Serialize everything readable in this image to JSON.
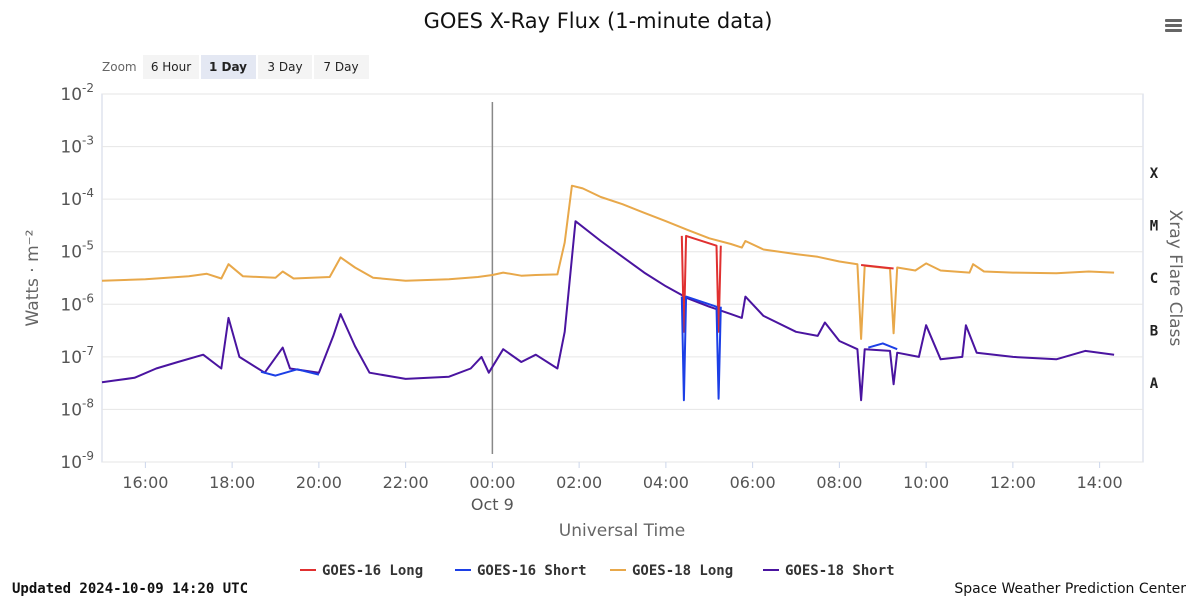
{
  "menu_icon": "hamburger-menu-icon",
  "zoom": {
    "label": "Zoom",
    "buttons": [
      "6 Hour",
      "1 Day",
      "3 Day",
      "7 Day"
    ],
    "selected": "1 Day"
  },
  "footer": {
    "updated": "Updated 2024-10-09 14:20 UTC",
    "source": "Space Weather Prediction Center"
  },
  "colors": {
    "goes16_long": "#e03030",
    "goes16_short": "#1c3fe6",
    "goes18_long": "#e8a84a",
    "goes18_short": "#4a14a0"
  },
  "chart_data": {
    "type": "line",
    "title": "GOES X-Ray Flux (1-minute data)",
    "xlabel": "Universal Time",
    "ylabel": "Watts · m⁻²",
    "y2label": "Xray Flare Class",
    "y_scale": "log",
    "ylim": [
      1e-09,
      0.01
    ],
    "y_ticks": [
      {
        "base": "10",
        "exp": "-9",
        "value": 1e-09
      },
      {
        "base": "10",
        "exp": "-8",
        "value": 1e-08
      },
      {
        "base": "10",
        "exp": "-7",
        "value": 1e-07
      },
      {
        "base": "10",
        "exp": "-6",
        "value": 1e-06
      },
      {
        "base": "10",
        "exp": "-5",
        "value": 1e-05
      },
      {
        "base": "10",
        "exp": "-4",
        "value": 0.0001
      },
      {
        "base": "10",
        "exp": "-3",
        "value": 0.001
      },
      {
        "base": "10",
        "exp": "-2",
        "value": 0.01
      }
    ],
    "xlim": [
      "2024-10-08 15:00",
      "2024-10-09 15:00"
    ],
    "x_ticks": [
      {
        "label": "16:00",
        "time": "2024-10-08 16:00"
      },
      {
        "label": "18:00",
        "time": "2024-10-08 18:00"
      },
      {
        "label": "20:00",
        "time": "2024-10-08 20:00"
      },
      {
        "label": "22:00",
        "time": "2024-10-08 22:00"
      },
      {
        "label": "00:00",
        "sub": "Oct 9",
        "time": "2024-10-09 00:00"
      },
      {
        "label": "02:00",
        "time": "2024-10-09 02:00"
      },
      {
        "label": "04:00",
        "time": "2024-10-09 04:00"
      },
      {
        "label": "06:00",
        "time": "2024-10-09 06:00"
      },
      {
        "label": "08:00",
        "time": "2024-10-09 08:00"
      },
      {
        "label": "10:00",
        "time": "2024-10-09 10:00"
      },
      {
        "label": "12:00",
        "time": "2024-10-09 12:00"
      },
      {
        "label": "14:00",
        "time": "2024-10-09 14:00"
      }
    ],
    "day_marker": "2024-10-09 00:00",
    "flare_classes": [
      {
        "label": "A",
        "value": 1e-08
      },
      {
        "label": "B",
        "value": 1e-07
      },
      {
        "label": "C",
        "value": 1e-06
      },
      {
        "label": "M",
        "value": 1e-05
      },
      {
        "label": "X",
        "value": 0.0001
      }
    ],
    "grid": true,
    "legend_position": "bottom-center",
    "series": [
      {
        "name": "GOES-18 Long",
        "color": "#e8a84a",
        "points": [
          [
            "2024-10-08 15:00",
            2.8e-06
          ],
          [
            "2024-10-08 16:00",
            3e-06
          ],
          [
            "2024-10-08 17:00",
            3.4e-06
          ],
          [
            "2024-10-08 17:25",
            3.8e-06
          ],
          [
            "2024-10-08 17:45",
            3.1e-06
          ],
          [
            "2024-10-08 17:55",
            5.8e-06
          ],
          [
            "2024-10-08 18:15",
            3.4e-06
          ],
          [
            "2024-10-08 19:00",
            3.2e-06
          ],
          [
            "2024-10-08 19:10",
            4.2e-06
          ],
          [
            "2024-10-08 19:25",
            3.1e-06
          ],
          [
            "2024-10-08 20:15",
            3.3e-06
          ],
          [
            "2024-10-08 20:30",
            7.8e-06
          ],
          [
            "2024-10-08 20:50",
            5e-06
          ],
          [
            "2024-10-08 21:15",
            3.2e-06
          ],
          [
            "2024-10-08 22:00",
            2.8e-06
          ],
          [
            "2024-10-08 23:00",
            3e-06
          ],
          [
            "2024-10-08 23:40",
            3.3e-06
          ],
          [
            "2024-10-09 00:00",
            3.6e-06
          ],
          [
            "2024-10-09 00:15",
            4e-06
          ],
          [
            "2024-10-09 00:40",
            3.5e-06
          ],
          [
            "2024-10-09 01:00",
            3.6e-06
          ],
          [
            "2024-10-09 01:30",
            3.7e-06
          ],
          [
            "2024-10-09 01:40",
            1.5e-05
          ],
          [
            "2024-10-09 01:50",
            0.00018
          ],
          [
            "2024-10-09 02:05",
            0.00016
          ],
          [
            "2024-10-09 02:30",
            0.00011
          ],
          [
            "2024-10-09 03:00",
            8e-05
          ],
          [
            "2024-10-09 03:30",
            5.5e-05
          ],
          [
            "2024-10-09 04:00",
            3.8e-05
          ],
          [
            "2024-10-09 04:30",
            2.6e-05
          ],
          [
            "2024-10-09 05:00",
            1.8e-05
          ],
          [
            "2024-10-09 05:30",
            1.4e-05
          ],
          [
            "2024-10-09 05:45",
            1.2e-05
          ],
          [
            "2024-10-09 05:50",
            1.6e-05
          ],
          [
            "2024-10-09 06:15",
            1.1e-05
          ],
          [
            "2024-10-09 07:00",
            9e-06
          ],
          [
            "2024-10-09 07:30",
            8e-06
          ],
          [
            "2024-10-09 08:00",
            6.5e-06
          ],
          [
            "2024-10-09 08:25",
            5.8e-06
          ],
          [
            "2024-10-09 08:30",
            2.2e-07
          ],
          [
            "2024-10-09 08:35",
            5.4e-06
          ],
          [
            "2024-10-09 09:10",
            4.8e-06
          ],
          [
            "2024-10-09 09:15",
            2.8e-07
          ],
          [
            "2024-10-09 09:20",
            5e-06
          ],
          [
            "2024-10-09 09:45",
            4.4e-06
          ],
          [
            "2024-10-09 10:00",
            6e-06
          ],
          [
            "2024-10-09 10:20",
            4.4e-06
          ],
          [
            "2024-10-09 11:00",
            4e-06
          ],
          [
            "2024-10-09 11:05",
            5.8e-06
          ],
          [
            "2024-10-09 11:20",
            4.2e-06
          ],
          [
            "2024-10-09 12:00",
            4e-06
          ],
          [
            "2024-10-09 13:00",
            3.9e-06
          ],
          [
            "2024-10-09 13:45",
            4.2e-06
          ],
          [
            "2024-10-09 14:20",
            4e-06
          ]
        ]
      },
      {
        "name": "GOES-18 Short",
        "color": "#4a14a0",
        "points": [
          [
            "2024-10-08 15:00",
            3.3e-08
          ],
          [
            "2024-10-08 15:45",
            4e-08
          ],
          [
            "2024-10-08 16:15",
            6e-08
          ],
          [
            "2024-10-08 16:45",
            8e-08
          ],
          [
            "2024-10-08 17:20",
            1.1e-07
          ],
          [
            "2024-10-08 17:45",
            6e-08
          ],
          [
            "2024-10-08 17:55",
            5.5e-07
          ],
          [
            "2024-10-08 18:10",
            1e-07
          ],
          [
            "2024-10-08 18:45",
            5e-08
          ],
          [
            "2024-10-08 19:10",
            1.5e-07
          ],
          [
            "2024-10-08 19:20",
            6e-08
          ],
          [
            "2024-10-08 20:00",
            5e-08
          ],
          [
            "2024-10-08 20:20",
            2.5e-07
          ],
          [
            "2024-10-08 20:30",
            6.5e-07
          ],
          [
            "2024-10-08 20:50",
            1.6e-07
          ],
          [
            "2024-10-08 21:10",
            5e-08
          ],
          [
            "2024-10-08 22:00",
            3.8e-08
          ],
          [
            "2024-10-08 23:00",
            4.2e-08
          ],
          [
            "2024-10-08 23:30",
            6e-08
          ],
          [
            "2024-10-08 23:45",
            1e-07
          ],
          [
            "2024-10-08 23:55",
            5e-08
          ],
          [
            "2024-10-09 00:15",
            1.4e-07
          ],
          [
            "2024-10-09 00:40",
            8e-08
          ],
          [
            "2024-10-09 01:00",
            1.1e-07
          ],
          [
            "2024-10-09 01:30",
            6e-08
          ],
          [
            "2024-10-09 01:40",
            3e-07
          ],
          [
            "2024-10-09 01:55",
            3.8e-05
          ],
          [
            "2024-10-09 02:30",
            1.6e-05
          ],
          [
            "2024-10-09 03:00",
            8e-06
          ],
          [
            "2024-10-09 03:30",
            4e-06
          ],
          [
            "2024-10-09 04:00",
            2.2e-06
          ],
          [
            "2024-10-09 04:30",
            1.3e-06
          ],
          [
            "2024-10-09 05:00",
            9e-07
          ],
          [
            "2024-10-09 05:30",
            6.5e-07
          ],
          [
            "2024-10-09 05:45",
            5.5e-07
          ],
          [
            "2024-10-09 05:50",
            1.4e-06
          ],
          [
            "2024-10-09 06:15",
            6e-07
          ],
          [
            "2024-10-09 07:00",
            3e-07
          ],
          [
            "2024-10-09 07:30",
            2.5e-07
          ],
          [
            "2024-10-09 07:40",
            4.5e-07
          ],
          [
            "2024-10-09 08:00",
            2e-07
          ],
          [
            "2024-10-09 08:25",
            1.4e-07
          ],
          [
            "2024-10-09 08:30",
            1.5e-08
          ],
          [
            "2024-10-09 08:35",
            1.4e-07
          ],
          [
            "2024-10-09 09:10",
            1.3e-07
          ],
          [
            "2024-10-09 09:15",
            3e-08
          ],
          [
            "2024-10-09 09:20",
            1.2e-07
          ],
          [
            "2024-10-09 09:50",
            1e-07
          ],
          [
            "2024-10-09 10:00",
            4e-07
          ],
          [
            "2024-10-09 10:20",
            9e-08
          ],
          [
            "2024-10-09 10:50",
            1e-07
          ],
          [
            "2024-10-09 10:55",
            4e-07
          ],
          [
            "2024-10-09 11:10",
            1.2e-07
          ],
          [
            "2024-10-09 12:00",
            1e-07
          ],
          [
            "2024-10-09 13:00",
            9e-08
          ],
          [
            "2024-10-09 13:40",
            1.3e-07
          ],
          [
            "2024-10-09 14:20",
            1.1e-07
          ]
        ]
      },
      {
        "name": "GOES-16 Long",
        "color": "#e03030",
        "points": [
          [
            "2024-10-09 04:22",
            2e-05
          ],
          [
            "2024-10-09 04:25",
            3e-07
          ],
          [
            "2024-10-09 04:28",
            2e-05
          ],
          [
            "2024-10-09 05:10",
            1.3e-05
          ],
          [
            "2024-10-09 05:13",
            3e-07
          ],
          [
            "2024-10-09 05:16",
            1.3e-05
          ],
          [
            "2024-10-09 08:30",
            5.6e-06
          ],
          [
            "2024-10-09 09:15",
            4.8e-06
          ]
        ]
      },
      {
        "name": "GOES-16 Short",
        "color": "#1c3fe6",
        "points": [
          [
            "2024-10-08 18:40",
            5.2e-08
          ],
          [
            "2024-10-08 19:00",
            4.4e-08
          ],
          [
            "2024-10-08 19:30",
            5.8e-08
          ],
          [
            "2024-10-08 20:00",
            4.6e-08
          ],
          [
            "2024-10-09 04:22",
            1.4e-06
          ],
          [
            "2024-10-09 04:25",
            1.5e-08
          ],
          [
            "2024-10-09 04:28",
            1.4e-06
          ],
          [
            "2024-10-09 05:10",
            9e-07
          ],
          [
            "2024-10-09 05:13",
            1.6e-08
          ],
          [
            "2024-10-09 05:16",
            9e-07
          ],
          [
            "2024-10-09 08:40",
            1.5e-07
          ],
          [
            "2024-10-09 09:00",
            1.8e-07
          ],
          [
            "2024-10-09 09:20",
            1.4e-07
          ]
        ]
      }
    ]
  }
}
